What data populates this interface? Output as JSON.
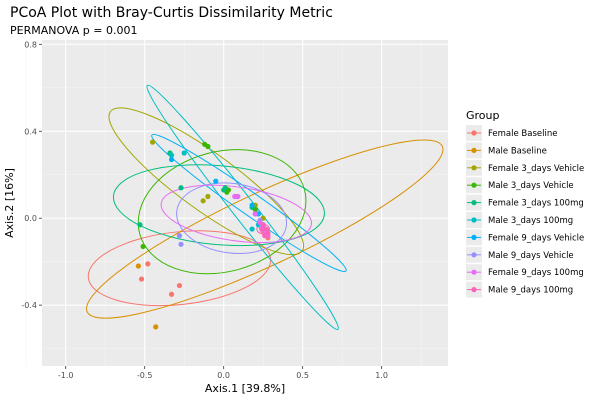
{
  "chart_data": {
    "type": "scatter",
    "title": "PCoA Plot with Bray-Curtis Dissimilarity Metric",
    "subtitle": "PERMANOVA p = 0.001",
    "xlabel": "Axis.1   [39.8%]",
    "ylabel": "Axis.2   [16%]",
    "xlim": [
      -1.15,
      1.42
    ],
    "ylim": [
      -0.68,
      0.82
    ],
    "xticks": [
      -1.0,
      -0.5,
      0.0,
      0.5,
      1.0
    ],
    "xtick_labels": [
      "-1.0",
      "-0.5",
      "0.0",
      "0.5",
      "1.0"
    ],
    "yticks": [
      -0.4,
      0.0,
      0.4,
      0.8
    ],
    "ytick_labels": [
      "-0.4",
      "0.0",
      "0.4",
      "0.8"
    ],
    "grid": true,
    "legend_title": "Group",
    "legend_position": "right",
    "series": [
      {
        "name": "Female Baseline",
        "color": "#F8766D",
        "points": [
          [
            -0.52,
            -0.28
          ],
          [
            -0.48,
            -0.21
          ],
          [
            -0.33,
            -0.35
          ],
          [
            -0.28,
            -0.31
          ],
          [
            0.25,
            -0.06
          ],
          [
            0.27,
            -0.07
          ],
          [
            0.28,
            -0.09
          ]
        ],
        "ellipse": {
          "cx": -0.28,
          "cy": -0.23,
          "rx": 0.58,
          "ry": 0.23,
          "angle": 6
        }
      },
      {
        "name": "Male Baseline",
        "color": "#D89000",
        "points": [
          [
            -0.54,
            -0.22
          ],
          [
            -0.43,
            -0.5
          ],
          [
            0.26,
            -0.05
          ],
          [
            0.27,
            -0.06
          ],
          [
            0.28,
            -0.07
          ]
        ],
        "ellipse": {
          "cx": 0.26,
          "cy": -0.05,
          "rx": 1.24,
          "ry": 0.23,
          "angle": 25
        }
      },
      {
        "name": "Female 3_days Vehicle",
        "color": "#A3A500",
        "points": [
          [
            -0.45,
            0.35
          ],
          [
            -0.13,
            0.08
          ],
          [
            -0.1,
            0.1
          ],
          [
            0.2,
            0.06
          ],
          [
            0.25,
            0.0
          ]
        ],
        "ellipse": {
          "cx": -0.11,
          "cy": 0.17,
          "rx": 0.75,
          "ry": 0.18,
          "angle": -36
        }
      },
      {
        "name": "Male 3_days Vehicle",
        "color": "#39B600",
        "points": [
          [
            -0.51,
            -0.13
          ],
          [
            -0.12,
            0.34
          ],
          [
            -0.1,
            0.33
          ],
          [
            0.02,
            0.12
          ],
          [
            0.03,
            0.13
          ],
          [
            0.2,
            0.04
          ]
        ],
        "ellipse": {
          "cx": -0.01,
          "cy": 0.03,
          "rx": 0.54,
          "ry": 0.38,
          "angle": 15
        }
      },
      {
        "name": "Female 3_days 100mg",
        "color": "#00BF7D",
        "points": [
          [
            -0.53,
            -0.03
          ],
          [
            -0.34,
            0.3
          ],
          [
            -0.27,
            0.14
          ],
          [
            0.0,
            0.13
          ],
          [
            0.01,
            0.14
          ],
          [
            0.18,
            0.05
          ]
        ],
        "ellipse": {
          "cx": -0.03,
          "cy": 0.06,
          "rx": 0.67,
          "ry": 0.25,
          "angle": -5
        }
      },
      {
        "name": "Male 3_days 100mg",
        "color": "#00BFC4",
        "points": [
          [
            -0.33,
            0.29
          ],
          [
            -0.25,
            0.3
          ],
          [
            0.18,
            -0.05
          ],
          [
            0.22,
            -0.03
          ],
          [
            0.26,
            -0.05
          ]
        ],
        "ellipse": {
          "cx": 0.12,
          "cy": 0.05,
          "rx": 0.98,
          "ry": 0.07,
          "angle": -52
        }
      },
      {
        "name": "Female 9_days Vehicle",
        "color": "#00B0F6",
        "points": [
          [
            -0.33,
            0.27
          ],
          [
            -0.05,
            0.17
          ],
          [
            0.18,
            0.06
          ],
          [
            0.22,
            0.02
          ],
          [
            0.25,
            -0.03
          ]
        ],
        "ellipse": {
          "cx": 0.16,
          "cy": 0.07,
          "rx": 0.75,
          "ry": 0.07,
          "angle": -35
        }
      },
      {
        "name": "Male 9_days Vehicle",
        "color": "#9590FF",
        "points": [
          [
            -0.28,
            -0.08
          ],
          [
            -0.27,
            -0.12
          ],
          [
            0.08,
            0.1
          ],
          [
            0.2,
            0.02
          ],
          [
            0.23,
            -0.01
          ],
          [
            0.24,
            -0.04
          ]
        ],
        "ellipse": {
          "cx": 0.05,
          "cy": 0.0,
          "rx": 0.35,
          "ry": 0.22,
          "angle": -8
        }
      },
      {
        "name": "Female 9_days 100mg",
        "color": "#E76BF3",
        "points": [
          [
            0.07,
            0.1
          ],
          [
            0.09,
            0.1
          ],
          [
            0.2,
            0.02
          ],
          [
            0.23,
            -0.02
          ],
          [
            0.26,
            -0.06
          ],
          [
            0.28,
            -0.08
          ]
        ],
        "ellipse": {
          "cx": 0.08,
          "cy": 0.02,
          "rx": 0.48,
          "ry": 0.17,
          "angle": -8
        }
      },
      {
        "name": "Male 9_days 100mg",
        "color": "#FF62BC",
        "points": [
          [
            0.24,
            -0.05
          ],
          [
            0.25,
            -0.03
          ],
          [
            0.27,
            -0.05
          ],
          [
            0.28,
            -0.07
          ],
          [
            0.26,
            -0.08
          ]
        ],
        "ellipse": {
          "cx": 0.25,
          "cy": -0.05,
          "rx": 0.04,
          "ry": 0.03,
          "angle": 0
        }
      }
    ]
  }
}
